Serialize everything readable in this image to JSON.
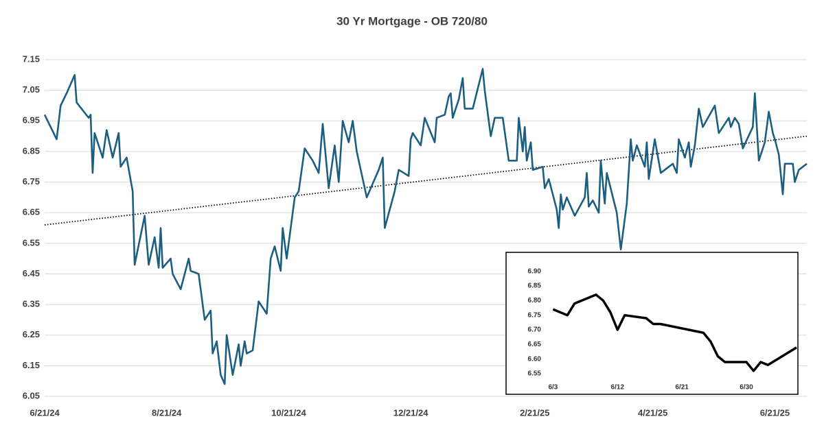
{
  "chart_data": [
    {
      "type": "line",
      "title": "30 Yr Mortgage - OB 720/80",
      "color": "#1b5e80",
      "grid": true,
      "xlim": [
        "6/21/24",
        "7/7/25"
      ],
      "xticks": [
        "6/21/24",
        "8/21/24",
        "10/21/24",
        "12/21/24",
        "2/21/25",
        "4/21/25",
        "6/21/25"
      ],
      "ylim": [
        6.05,
        7.15
      ],
      "yticks": [
        6.05,
        6.15,
        6.25,
        6.35,
        6.45,
        6.55,
        6.65,
        6.75,
        6.85,
        6.95,
        7.05,
        7.15
      ],
      "x": [
        "6/21/24",
        "6/27/24",
        "6/29/24",
        "7/2/24",
        "7/6/24",
        "7/7/24",
        "7/13/24",
        "7/14/24",
        "7/15/24",
        "7/16/24",
        "7/20/24",
        "7/22/24",
        "7/25/24",
        "7/28/24",
        "7/29/24",
        "8/1/24",
        "8/4/24",
        "8/5/24",
        "8/10/24",
        "8/12/24",
        "8/15/24",
        "8/17/24",
        "8/18/24",
        "8/19/24",
        "8/23/24",
        "8/24/24",
        "8/28/24",
        "9/1/24",
        "9/2/24",
        "9/6/24",
        "9/9/24",
        "9/12/24",
        "9/13/24",
        "9/15/24",
        "9/17/24",
        "9/19/24",
        "9/20/24",
        "9/23/24",
        "9/26/24",
        "9/27/24",
        "9/29/24",
        "9/30/24",
        "10/3/24",
        "10/6/24",
        "10/10/24",
        "10/12/24",
        "10/14/24",
        "10/17/24",
        "10/18/24",
        "10/20/24",
        "10/24/24",
        "10/26/24",
        "10/29/24",
        "11/2/24",
        "11/5/24",
        "11/7/24",
        "11/10/24",
        "11/13/24",
        "11/15/24",
        "11/17/24",
        "11/20/24",
        "11/22/24",
        "11/24/24",
        "11/29/24",
        "12/5/24",
        "12/7/24",
        "12/8/24",
        "12/13/24",
        "12/15/24",
        "12/20/24",
        "12/21/24",
        "12/22/24",
        "12/26/24",
        "12/28/24",
        "1/2/25",
        "1/3/25",
        "1/7/25",
        "1/9/25",
        "1/10/25",
        "1/11/25",
        "1/14/25",
        "1/16/25",
        "1/17/25",
        "1/21/25",
        "1/26/25",
        "1/27/25",
        "1/30/25",
        "2/1/25",
        "2/5/25",
        "2/8/25",
        "2/12/25",
        "2/13/25",
        "2/15/25",
        "2/16/25",
        "2/17/25",
        "2/19/25",
        "2/20/25",
        "2/25/25",
        "2/26/25",
        "2/28/25",
        "3/4/25",
        "3/5/25",
        "3/6/25",
        "3/7/25",
        "3/9/25",
        "3/13/25",
        "3/18/25",
        "3/19/25",
        "3/20/25",
        "3/22/25",
        "3/25/25",
        "3/26/25",
        "3/28/25",
        "3/29/25",
        "4/3/25",
        "4/5/25",
        "4/8/25",
        "4/10/25",
        "4/11/25",
        "4/13/25",
        "4/17/25",
        "4/18/25",
        "4/19/25",
        "4/22/25",
        "4/25/25",
        "5/1/25",
        "5/3/25",
        "5/4/25",
        "5/7/25",
        "5/9/25",
        "5/10/25",
        "5/12/25",
        "5/14/25",
        "5/16/25",
        "5/22/25",
        "5/24/25",
        "5/29/25",
        "5/30/25",
        "6/1/25",
        "6/3/25",
        "6/5/25",
        "6/10/25",
        "6/11/25",
        "6/13/25",
        "6/16/25",
        "6/18/25",
        "6/20/25",
        "6/21/25",
        "6/23/25",
        "6/25/25",
        "6/26/25",
        "6/30/25",
        "7/1/25",
        "7/3/25",
        "7/7/25"
      ],
      "values": [
        6.97,
        6.89,
        7.0,
        7.04,
        7.1,
        7.01,
        6.96,
        6.97,
        6.78,
        6.91,
        6.83,
        6.92,
        6.83,
        6.91,
        6.8,
        6.83,
        6.72,
        6.48,
        6.64,
        6.48,
        6.57,
        6.47,
        6.6,
        6.47,
        6.5,
        6.45,
        6.4,
        6.5,
        6.46,
        6.45,
        6.3,
        6.33,
        6.19,
        6.23,
        6.12,
        6.09,
        6.25,
        6.12,
        6.22,
        6.15,
        6.23,
        6.19,
        6.2,
        6.36,
        6.32,
        6.5,
        6.54,
        6.46,
        6.6,
        6.5,
        6.7,
        6.72,
        6.86,
        6.82,
        6.78,
        6.94,
        6.73,
        6.87,
        6.75,
        6.95,
        6.88,
        6.95,
        6.85,
        6.7,
        6.79,
        6.83,
        6.6,
        6.72,
        6.79,
        6.77,
        6.89,
        6.91,
        6.87,
        6.96,
        6.88,
        6.96,
        6.97,
        7.03,
        7.04,
        6.96,
        7.02,
        7.09,
        6.99,
        6.99,
        7.12,
        7.05,
        6.9,
        6.96,
        6.96,
        6.82,
        6.82,
        6.96,
        6.85,
        6.93,
        6.82,
        6.88,
        6.79,
        6.8,
        6.73,
        6.76,
        6.66,
        6.6,
        6.71,
        6.66,
        6.7,
        6.64,
        6.7,
        6.78,
        6.67,
        6.69,
        6.65,
        6.82,
        6.68,
        6.78,
        6.65,
        6.53,
        6.68,
        6.89,
        6.82,
        6.87,
        6.8,
        6.88,
        6.76,
        6.89,
        6.78,
        6.81,
        6.78,
        6.89,
        6.83,
        6.88,
        6.8,
        6.87,
        6.99,
        6.93,
        7.0,
        6.91,
        6.96,
        6.93,
        6.96,
        6.94,
        6.86,
        6.93,
        7.04,
        6.82,
        6.88,
        6.98,
        6.91,
        6.89,
        6.84,
        6.71,
        6.81,
        6.81,
        6.75,
        6.79,
        6.81
      ],
      "trendline": {
        "x": [
          "6/21/24",
          "7/7/25"
        ],
        "values": [
          6.61,
          6.9
        ],
        "color": "#000000",
        "style": "dotted"
      }
    },
    {
      "type": "line",
      "color": "#000000",
      "grid": false,
      "xlim": [
        "6/2",
        "7/7"
      ],
      "xticks": [
        "6/3",
        "6/12",
        "6/21",
        "6/30"
      ],
      "ylim": [
        6.48,
        6.96
      ],
      "yticks": [
        6.55,
        {
          "value": 6.6,
          "label": "6.60"
        },
        6.65,
        {
          "value": 6.7,
          "label": "6.70"
        },
        6.75,
        {
          "value": 6.8,
          "label": "6.80"
        },
        6.85,
        {
          "value": 6.9,
          "label": "6.90"
        }
      ],
      "x": [
        "6/3",
        "6/5",
        "6/6",
        "6/9",
        "6/10",
        "6/11",
        "6/12",
        "6/13",
        "6/16",
        "6/17",
        "6/18",
        "6/24",
        "6/25",
        "6/26",
        "6/27",
        "6/30",
        "7/1",
        "7/2",
        "7/3",
        "7/7"
      ],
      "values": [
        6.77,
        6.75,
        6.79,
        6.82,
        6.8,
        6.76,
        6.7,
        6.75,
        6.74,
        6.72,
        6.72,
        6.69,
        6.66,
        6.61,
        6.59,
        6.59,
        6.56,
        6.59,
        6.58,
        6.64
      ]
    }
  ]
}
